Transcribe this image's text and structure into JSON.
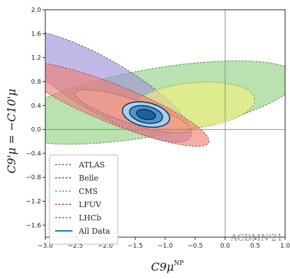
{
  "chart_data": {
    "type": "contour",
    "xlim": [
      -3.0,
      1.0
    ],
    "ylim": [
      -1.8,
      2.0
    ],
    "xticks": [
      "-3.0",
      "-2.5",
      "-2.0",
      "-1.5",
      "-1.0",
      "-0.5",
      "0.0",
      "0.5",
      "1.0"
    ],
    "yticks": [
      "2.0",
      "1.6",
      "1.2",
      "0.8",
      "0.4",
      "0.0",
      "-0.4",
      "-0.8",
      "-1.2",
      "-1.6"
    ],
    "xlabel": "C9μ",
    "xlabel_sup": "NP",
    "ylabel": "C9'μ = −C10'μ",
    "annotation": "ACDMN'21",
    "legend_position": "lower-left",
    "reference_lines": {
      "x": 0.0,
      "y": 0.0
    },
    "series": [
      {
        "name": "ATLAS",
        "color": "#8fd17f",
        "style": "dashed",
        "center": [
          -1.2,
          0.45
        ],
        "rx": 2.45,
        "ry": 0.56,
        "angle_deg": 10
      },
      {
        "name": "Belle",
        "color": "#9d8fd6",
        "style": "dashed",
        "center": [
          -2.05,
          0.72
        ],
        "rx": 1.7,
        "ry": 0.45,
        "angle_deg": -30
      },
      {
        "name": "CMS",
        "color": "#f6f07a",
        "style": "dashed",
        "center": [
          -0.55,
          0.4
        ],
        "rx": 1.05,
        "ry": 0.38,
        "angle_deg": 6
      },
      {
        "name": "LFUV",
        "color": "#ef7c70",
        "style": "dashed",
        "center": [
          -1.85,
          0.42
        ],
        "rx": 1.7,
        "ry": 0.32,
        "angle_deg": -22
      },
      {
        "name": "LHCb",
        "color": "#f5a58e",
        "style": "dashed",
        "center": [
          -1.55,
          0.3
        ],
        "rx": 1.0,
        "ry": 0.2,
        "angle_deg": -18
      },
      {
        "name": "All Data",
        "color": "#2a6fb2",
        "style": "solid",
        "center": [
          -1.32,
          0.25
        ],
        "levels": [
          {
            "rx": 0.4,
            "ry": 0.2,
            "angle_deg": -12,
            "fill": "#a9d0ef"
          },
          {
            "rx": 0.28,
            "ry": 0.14,
            "angle_deg": -12,
            "fill": "#4e93d0"
          },
          {
            "rx": 0.16,
            "ry": 0.08,
            "angle_deg": -12,
            "fill": "#1f5f9e"
          }
        ]
      }
    ]
  }
}
